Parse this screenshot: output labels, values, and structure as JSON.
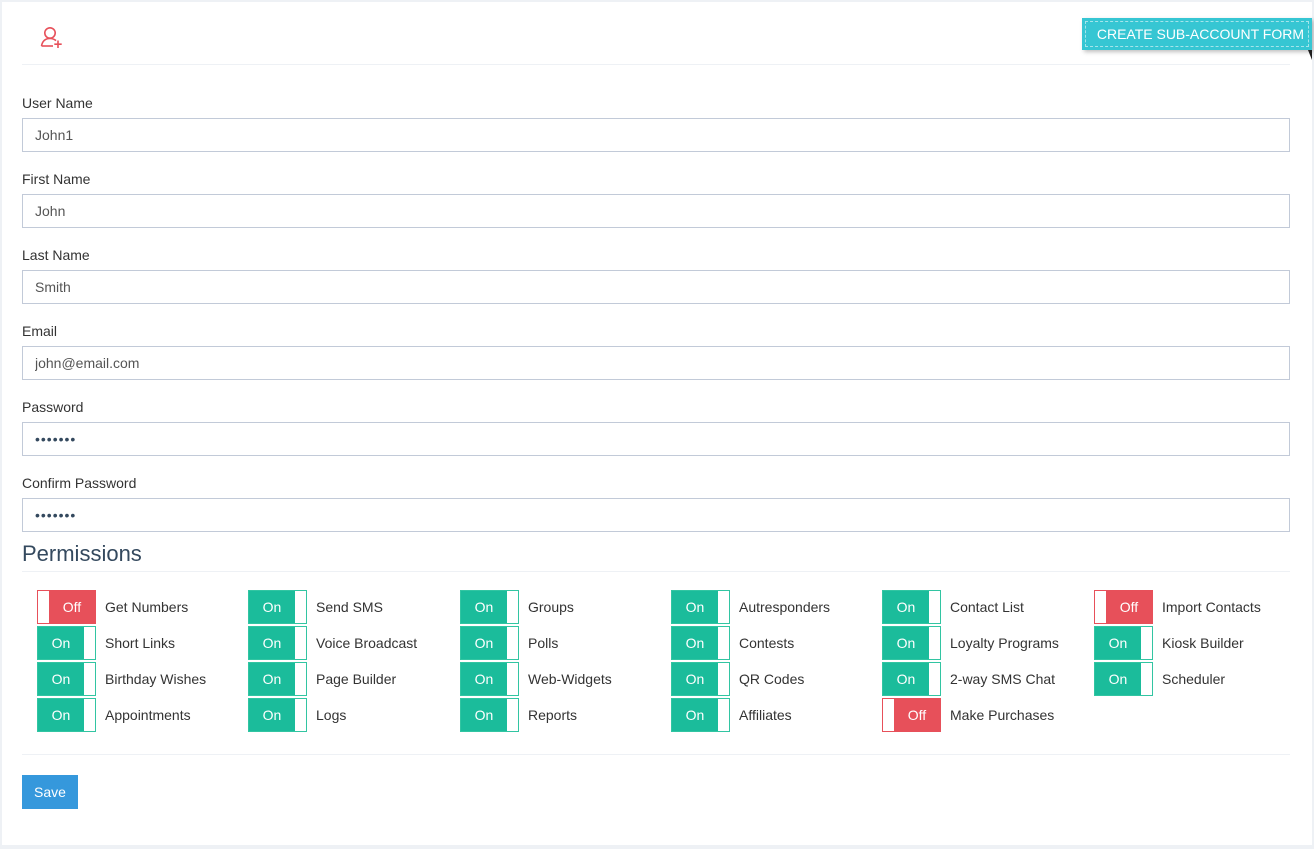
{
  "header": {
    "icon": "user-plus-icon",
    "ribbon_label": "CREATE SUB-ACCOUNT FORM"
  },
  "form": {
    "username": {
      "label": "User Name",
      "value": "John1"
    },
    "first_name": {
      "label": "First Name",
      "value": "John"
    },
    "last_name": {
      "label": "Last Name",
      "value": "Smith"
    },
    "email": {
      "label": "Email",
      "value": "john@email.com"
    },
    "password": {
      "label": "Password",
      "value": "1234567"
    },
    "confirm_password": {
      "label": "Confirm Password",
      "value": "1234567"
    }
  },
  "permissions": {
    "title": "Permissions",
    "on_label": "On",
    "off_label": "Off",
    "rows": [
      [
        {
          "label": "Get Numbers",
          "state": "Off"
        },
        {
          "label": "Send SMS",
          "state": "On"
        },
        {
          "label": "Groups",
          "state": "On"
        },
        {
          "label": "Autresponders",
          "state": "On"
        },
        {
          "label": "Contact List",
          "state": "On"
        },
        {
          "label": "Import Contacts",
          "state": "Off"
        }
      ],
      [
        {
          "label": "Short Links",
          "state": "On"
        },
        {
          "label": "Voice Broadcast",
          "state": "On"
        },
        {
          "label": "Polls",
          "state": "On"
        },
        {
          "label": "Contests",
          "state": "On"
        },
        {
          "label": "Loyalty Programs",
          "state": "On"
        },
        {
          "label": "Kiosk Builder",
          "state": "On"
        }
      ],
      [
        {
          "label": "Birthday Wishes",
          "state": "On"
        },
        {
          "label": "Page Builder",
          "state": "On"
        },
        {
          "label": "Web-Widgets",
          "state": "On"
        },
        {
          "label": "QR Codes",
          "state": "On"
        },
        {
          "label": "2-way SMS Chat",
          "state": "On"
        },
        {
          "label": "Scheduler",
          "state": "On"
        }
      ],
      [
        {
          "label": "Appointments",
          "state": "On"
        },
        {
          "label": "Logs",
          "state": "On"
        },
        {
          "label": "Reports",
          "state": "On"
        },
        {
          "label": "Affiliates",
          "state": "On"
        },
        {
          "label": "Make Purchases",
          "state": "Off"
        }
      ]
    ]
  },
  "actions": {
    "save_label": "Save"
  },
  "colors": {
    "on": "#1bbc9b",
    "off": "#e7505a",
    "ribbon": "#36c6d3",
    "save": "#3598dc",
    "icon": "#e7505a"
  }
}
